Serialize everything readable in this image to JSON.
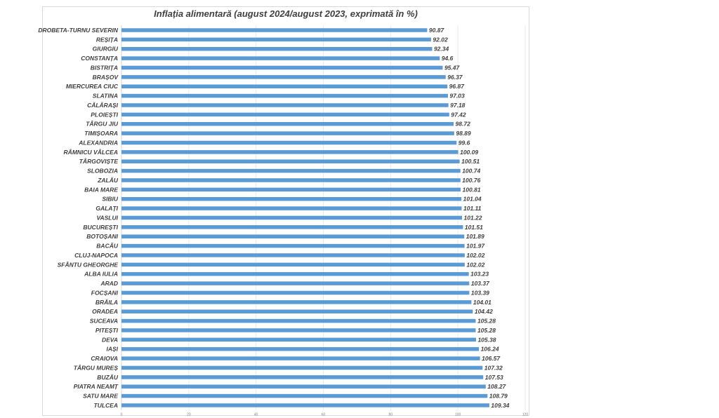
{
  "chart_data": {
    "type": "bar",
    "orientation": "horizontal",
    "title": "Inflația alimentară (august 2024/august 2023, exprimată în %)",
    "xlabel": "",
    "ylabel": "",
    "xlim": [
      0,
      120
    ],
    "x_ticks": [
      "0",
      "20",
      "40",
      "60",
      "80",
      "100",
      "120"
    ],
    "grid": true,
    "legend": "none",
    "bar_color": "#5b9bd5",
    "categories": [
      "DROBETA-TURNU SEVERIN",
      "REȘIȚA",
      "GIURGIU",
      "CONSTANȚA",
      "BISTRIȚA",
      "BRAȘOV",
      "MIERCUREA CIUC",
      "SLATINA",
      "CĂLĂRAȘI",
      "PLOIEȘTI",
      "TÂRGU JIU",
      "TIMIȘOARA",
      "ALEXANDRIA",
      "RÂMNICU VÂLCEA",
      "TÂRGOVIȘTE",
      "SLOBOZIA",
      "ZALĂU",
      "BAIA MARE",
      "SIBIU",
      "GALAȚI",
      "VASLUI",
      "BUCUREȘTI",
      "BOTOȘANI",
      "BACĂU",
      "CLUJ-NAPOCA",
      "SFÂNTU GHEORGHE",
      "ALBA IULIA",
      "ARAD",
      "FOCȘANI",
      "BRĂILA",
      "ORADEA",
      "SUCEAVA",
      "PITEȘTI",
      "DEVA",
      "IAȘI",
      "CRAIOVA",
      "TÂRGU MUREȘ",
      "BUZĂU",
      "PIATRA NEAMȚ",
      "SATU MARE",
      "TULCEA"
    ],
    "values": [
      90.87,
      92.02,
      92.34,
      94.6,
      95.47,
      96.37,
      96.87,
      97.03,
      97.18,
      97.42,
      98.72,
      98.89,
      99.6,
      100.09,
      100.51,
      100.74,
      100.76,
      100.81,
      101.04,
      101.11,
      101.22,
      101.51,
      101.89,
      101.97,
      102.02,
      102.02,
      103.23,
      103.37,
      103.39,
      104.01,
      104.42,
      105.28,
      105.28,
      105.38,
      106.24,
      106.57,
      107.32,
      107.53,
      108.27,
      108.79,
      109.34
    ],
    "value_labels": [
      "90.87",
      "92.02",
      "92.34",
      "94.6",
      "95.47",
      "96.37",
      "96.87",
      "97.03",
      "97.18",
      "97.42",
      "98.72",
      "98.89",
      "99.6",
      "100.09",
      "100.51",
      "100.74",
      "100.76",
      "100.81",
      "101.04",
      "101.11",
      "101.22",
      "101.51",
      "101.89",
      "101.97",
      "102.02",
      "102.02",
      "103.23",
      "103.37",
      "103.39",
      "104.01",
      "104.42",
      "105.28",
      "105.28",
      "105.38",
      "106.24",
      "106.57",
      "107.32",
      "107.53",
      "108.27",
      "108.79",
      "109.34"
    ]
  }
}
